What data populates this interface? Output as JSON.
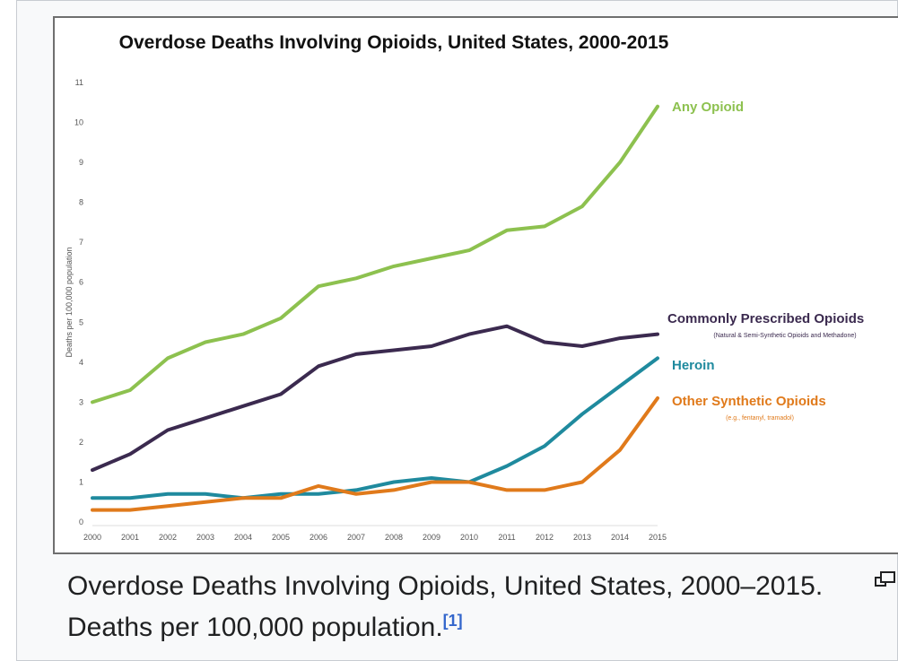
{
  "chart_data": {
    "type": "line",
    "title": "Overdose Deaths Involving Opioids, United States, 2000-2015",
    "ylabel": "Deaths per 100,000 population",
    "xlabel": "",
    "x": [
      2000,
      2001,
      2002,
      2003,
      2004,
      2005,
      2006,
      2007,
      2008,
      2009,
      2010,
      2011,
      2012,
      2013,
      2014,
      2015
    ],
    "ylim": [
      0,
      11
    ],
    "yticks": [
      0,
      1,
      2,
      3,
      4,
      5,
      6,
      7,
      8,
      9,
      10,
      11
    ],
    "grid": false,
    "series": [
      {
        "name": "Any Opioid",
        "color": "#8dc14f",
        "values": [
          3.0,
          3.3,
          4.1,
          4.5,
          4.7,
          5.1,
          5.9,
          6.1,
          6.4,
          6.6,
          6.8,
          7.3,
          7.4,
          7.9,
          9.0,
          10.4
        ]
      },
      {
        "name": "Commonly Prescribed Opioids",
        "sublabel": "(Natural & Semi-Synthetic Opioids and Methadone)",
        "color": "#3b2a4f",
        "values": [
          1.3,
          1.7,
          2.3,
          2.6,
          2.9,
          3.2,
          3.9,
          4.2,
          4.3,
          4.4,
          4.7,
          4.9,
          4.5,
          4.4,
          4.6,
          4.7
        ]
      },
      {
        "name": "Heroin",
        "color": "#1f8a9e",
        "values": [
          0.6,
          0.6,
          0.7,
          0.7,
          0.6,
          0.7,
          0.7,
          0.8,
          1.0,
          1.1,
          1.0,
          1.4,
          1.9,
          2.7,
          3.4,
          4.1
        ]
      },
      {
        "name": "Other Synthetic Opioids",
        "sublabel": "(e.g., fentanyl, tramadol)",
        "color": "#e07a1b",
        "values": [
          0.3,
          0.3,
          0.4,
          0.5,
          0.6,
          0.6,
          0.9,
          0.7,
          0.8,
          1.0,
          1.0,
          0.8,
          0.8,
          1.0,
          1.8,
          3.1
        ]
      }
    ]
  },
  "caption": {
    "text": "Overdose Deaths Involving Opioids, United States, 2000–2015. Deaths per 100,000 population.",
    "ref": "[1]"
  },
  "icons": {
    "enlarge": "magnify-clip-icon"
  }
}
